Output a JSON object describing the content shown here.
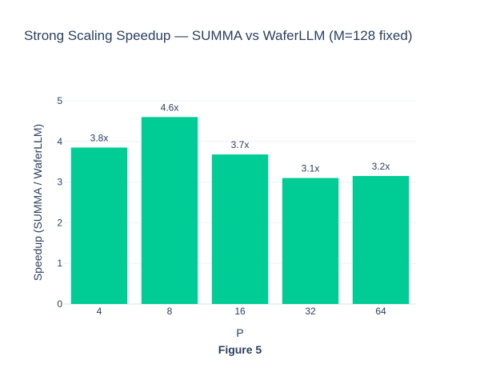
{
  "chart_data": {
    "type": "bar",
    "title": "Strong Scaling Speedup — SUMMA vs WaferLLM (M=128 fixed)",
    "xlabel": "P",
    "ylabel": "Speedup (SUMMA / WaferLLM)",
    "categories": [
      "4",
      "8",
      "16",
      "32",
      "64"
    ],
    "values": [
      3.85,
      4.6,
      3.68,
      3.1,
      3.15
    ],
    "data_labels": [
      "3.8x",
      "4.6x",
      "3.7x",
      "3.1x",
      "3.2x"
    ],
    "ylim": [
      0,
      5
    ],
    "yticks": [
      0,
      1,
      2,
      3,
      4,
      5
    ],
    "grid": true,
    "bar_color": "#00cc96",
    "caption": "Figure 5"
  }
}
